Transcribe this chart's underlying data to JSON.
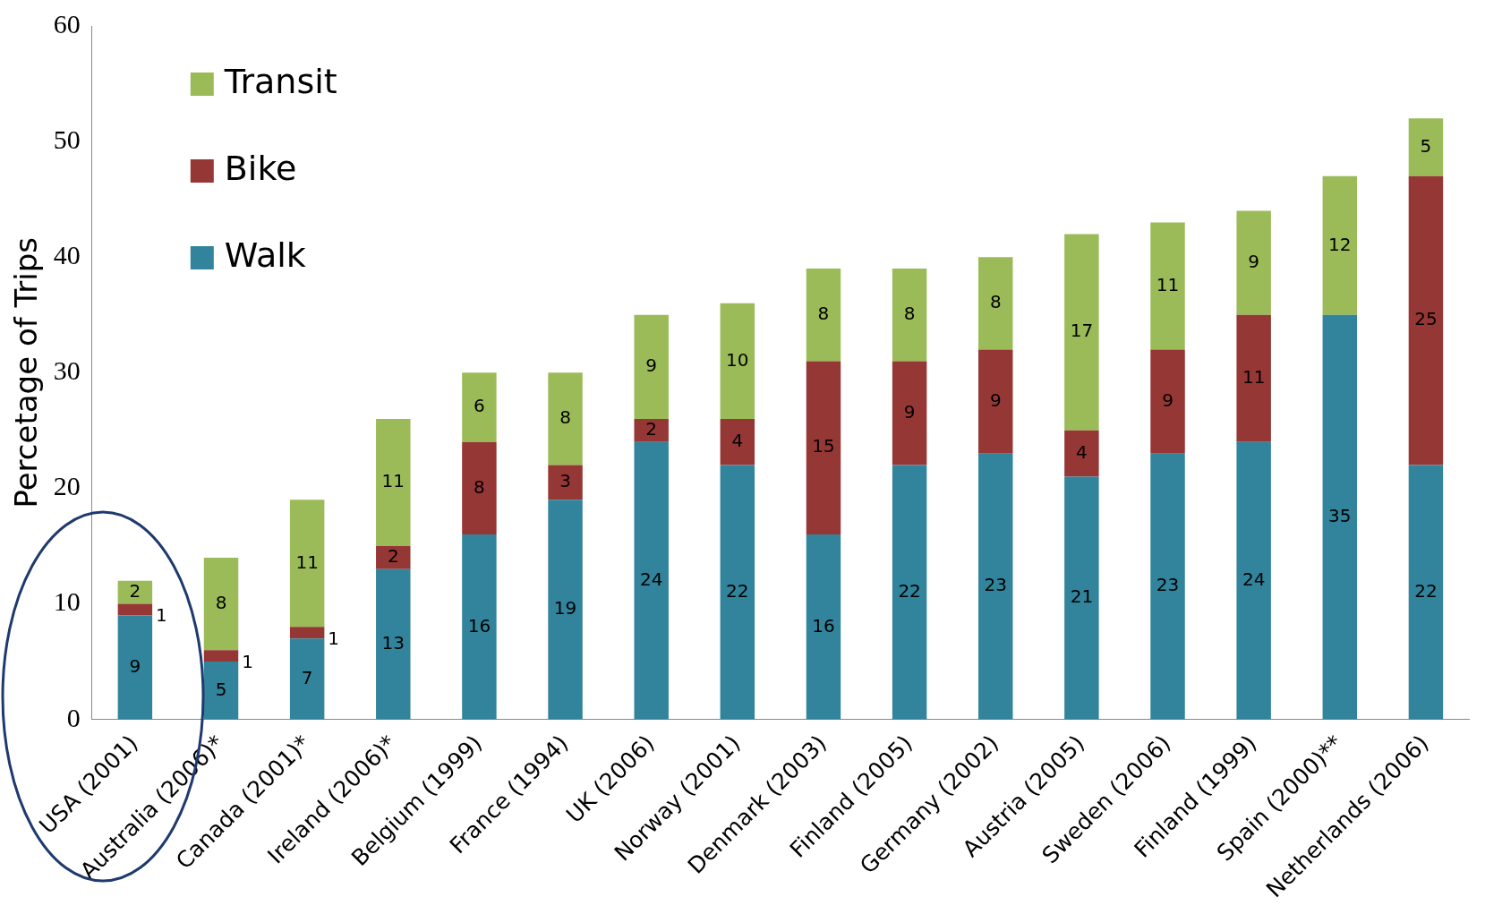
{
  "chart_data": {
    "type": "bar",
    "stacked": true,
    "ylabel": "Percetage of Trips",
    "categories": [
      "USA (2001)",
      "Australia (2006)*",
      "Canada (2001)*",
      "Ireland (2006)*",
      "Belgium (1999)",
      "France (1994)",
      "UK (2006)",
      "Norway (2001)",
      "Denmark (2003)",
      "Finland (2005)",
      "Germany (2002)",
      "Austria (2005)",
      "Sweden (2006)",
      "Finland (1999)",
      "Spain (2000)**",
      "Netherlands (2006)"
    ],
    "series": [
      {
        "name": "Walk",
        "color": "#31849b",
        "values": [
          9,
          5,
          7,
          13,
          16,
          19,
          24,
          22,
          16,
          22,
          23,
          21,
          23,
          24,
          35,
          22
        ]
      },
      {
        "name": "Bike",
        "color": "#953735",
        "values": [
          1,
          1,
          1,
          2,
          8,
          3,
          2,
          4,
          15,
          9,
          9,
          4,
          9,
          11,
          null,
          25
        ]
      },
      {
        "name": "Transit",
        "color": "#9bbb59",
        "values": [
          2,
          8,
          11,
          11,
          6,
          8,
          9,
          10,
          8,
          8,
          8,
          17,
          11,
          9,
          12,
          5
        ]
      }
    ],
    "ylim": [
      0,
      60
    ],
    "yticks": [
      0,
      10,
      20,
      30,
      40,
      50,
      60
    ],
    "grid": false,
    "legend": "top left",
    "data_labels": true
  }
}
